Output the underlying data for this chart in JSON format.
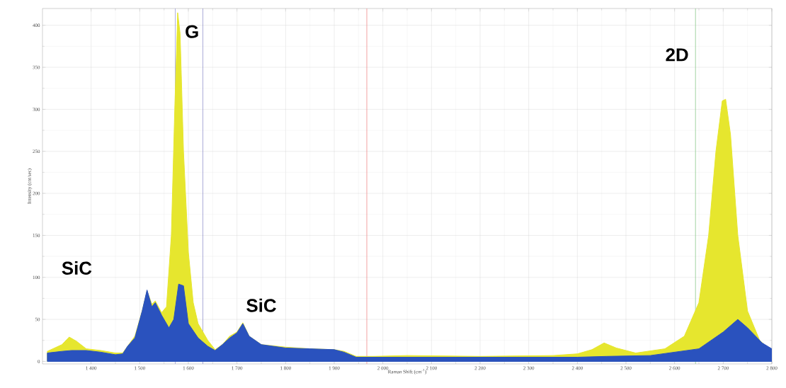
{
  "chart_data": {
    "type": "area",
    "xlabel": "Raman Shift (cm$^{-1}$)",
    "ylabel": "Intensity (cnt/sec)",
    "xlim": [
      1300,
      2800
    ],
    "ylim": [
      -3,
      420
    ],
    "xticks": [
      {
        "value": 1400,
        "label": "1 400"
      },
      {
        "value": 1500,
        "label": "1 500"
      },
      {
        "value": 1600,
        "label": "1 600"
      },
      {
        "value": 1700,
        "label": "1 700"
      },
      {
        "value": 1800,
        "label": "1 800"
      },
      {
        "value": 1900,
        "label": "1 900"
      },
      {
        "value": 2000,
        "label": "2 000"
      },
      {
        "value": 2100,
        "label": "2 100"
      },
      {
        "value": 2200,
        "label": "2 200"
      },
      {
        "value": 2300,
        "label": "2 300"
      },
      {
        "value": 2400,
        "label": "2 400"
      },
      {
        "value": 2500,
        "label": "2 500"
      },
      {
        "value": 2600,
        "label": "2 600"
      },
      {
        "value": 2700,
        "label": "2 700"
      },
      {
        "value": 2800,
        "label": "2 800"
      }
    ],
    "yticks": [
      0,
      50,
      100,
      150,
      200,
      250,
      300,
      350,
      400
    ],
    "grid": true,
    "marker": "none",
    "series": [
      {
        "color": "#e6e62e",
        "x": [
          1310,
          1340,
          1355,
          1370,
          1390,
          1420,
          1450,
          1465,
          1475,
          1490,
          1505,
          1515,
          1525,
          1532,
          1545,
          1555,
          1565,
          1572,
          1578,
          1583,
          1590,
          1600,
          1610,
          1620,
          1640,
          1655,
          1670,
          1685,
          1700,
          1712,
          1725,
          1750,
          1800,
          1850,
          1900,
          1920,
          1945,
          1980,
          2050,
          2200,
          2350,
          2400,
          2430,
          2455,
          2480,
          2520,
          2580,
          2620,
          2650,
          2670,
          2685,
          2698,
          2705,
          2715,
          2730,
          2750,
          2775,
          2800
        ],
        "values": [
          12,
          20,
          29,
          24,
          15,
          13,
          10,
          10,
          18,
          30,
          60,
          84,
          68,
          72,
          58,
          65,
          150,
          300,
          415,
          390,
          250,
          130,
          70,
          45,
          25,
          14,
          20,
          30,
          35,
          46,
          30,
          20,
          17,
          15,
          14,
          12,
          6,
          6,
          7,
          6,
          7,
          9,
          14,
          22,
          16,
          10,
          15,
          30,
          70,
          150,
          250,
          310,
          312,
          270,
          150,
          60,
          25,
          12
        ]
      },
      {
        "color": "#2a52be",
        "x": [
          1310,
          1340,
          1360,
          1390,
          1420,
          1450,
          1465,
          1475,
          1490,
          1505,
          1515,
          1525,
          1532,
          1545,
          1560,
          1570,
          1580,
          1590,
          1600,
          1620,
          1640,
          1655,
          1670,
          1685,
          1700,
          1712,
          1725,
          1750,
          1800,
          1850,
          1900,
          1920,
          1945,
          2000,
          2200,
          2400,
          2460,
          2550,
          2650,
          2700,
          2730,
          2750,
          2780,
          2800
        ],
        "values": [
          10,
          12,
          13,
          13,
          11,
          8,
          9,
          18,
          28,
          60,
          85,
          65,
          70,
          55,
          40,
          50,
          92,
          90,
          45,
          28,
          18,
          13,
          20,
          28,
          34,
          45,
          30,
          20,
          16,
          15,
          14,
          11,
          5,
          5,
          5,
          5,
          6,
          7,
          15,
          35,
          50,
          40,
          22,
          15
        ]
      }
    ],
    "ref_lines": [
      {
        "axis": "x",
        "value": 1573,
        "color": "#9a9ad8"
      },
      {
        "axis": "x",
        "value": 1630,
        "color": "#8a8ac8"
      },
      {
        "axis": "x",
        "value": 1967,
        "color": "#f08a8a"
      },
      {
        "axis": "x",
        "value": 2643,
        "color": "#8ac88a"
      }
    ],
    "annotations": [
      "G",
      "SiC",
      "SiC",
      "2D"
    ]
  }
}
